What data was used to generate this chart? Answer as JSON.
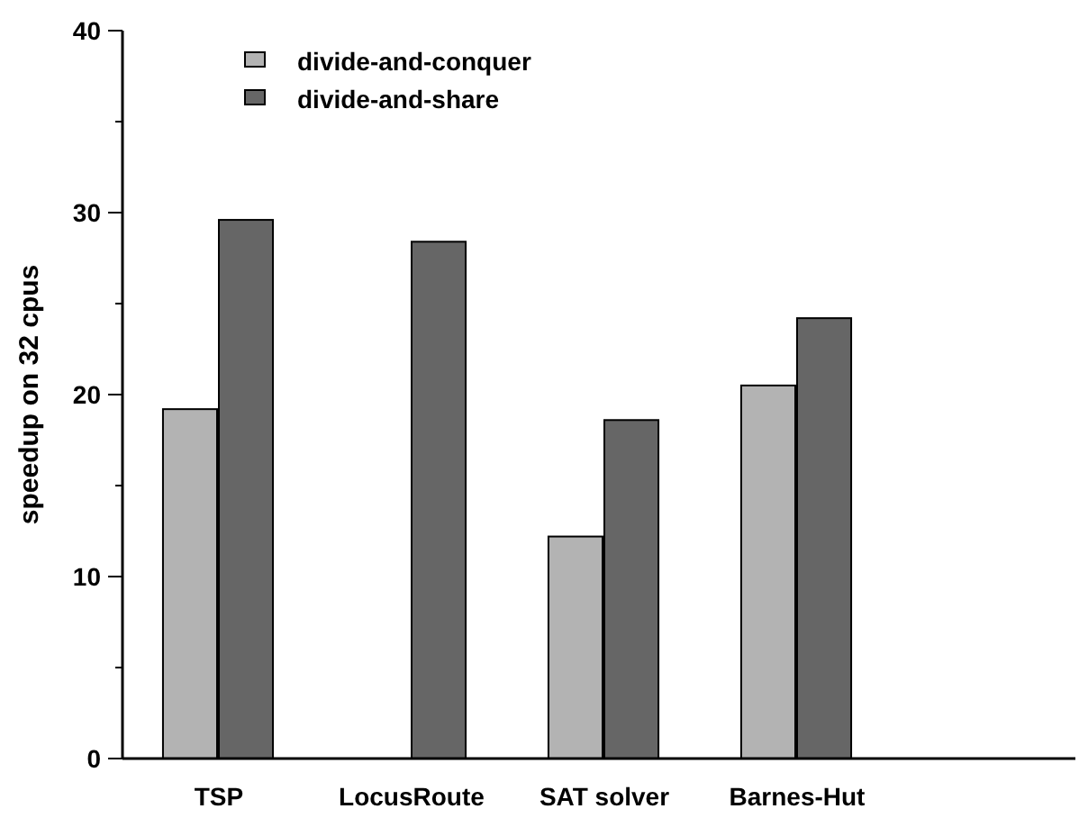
{
  "chart_data": {
    "type": "bar",
    "ylabel": "speedup on 32 cpus",
    "categories": [
      "TSP",
      "LocusRoute",
      "SAT solver",
      "Barnes-Hut"
    ],
    "series": [
      {
        "name": "divide-and-conquer",
        "color": "#b3b3b3",
        "values": [
          19.2,
          0,
          12.2,
          20.5
        ]
      },
      {
        "name": "divide-and-share",
        "color": "#666666",
        "values": [
          29.6,
          28.4,
          18.6,
          24.2
        ]
      }
    ],
    "ylim": [
      0,
      40
    ],
    "yticks": [
      0,
      {
        "value": 5,
        "label": null
      },
      10,
      {
        "value": 15,
        "label": null
      },
      20,
      {
        "value": 25,
        "label": null
      },
      30,
      {
        "value": 35,
        "label": null
      },
      40
    ],
    "legend": "top left",
    "grid": false
  }
}
